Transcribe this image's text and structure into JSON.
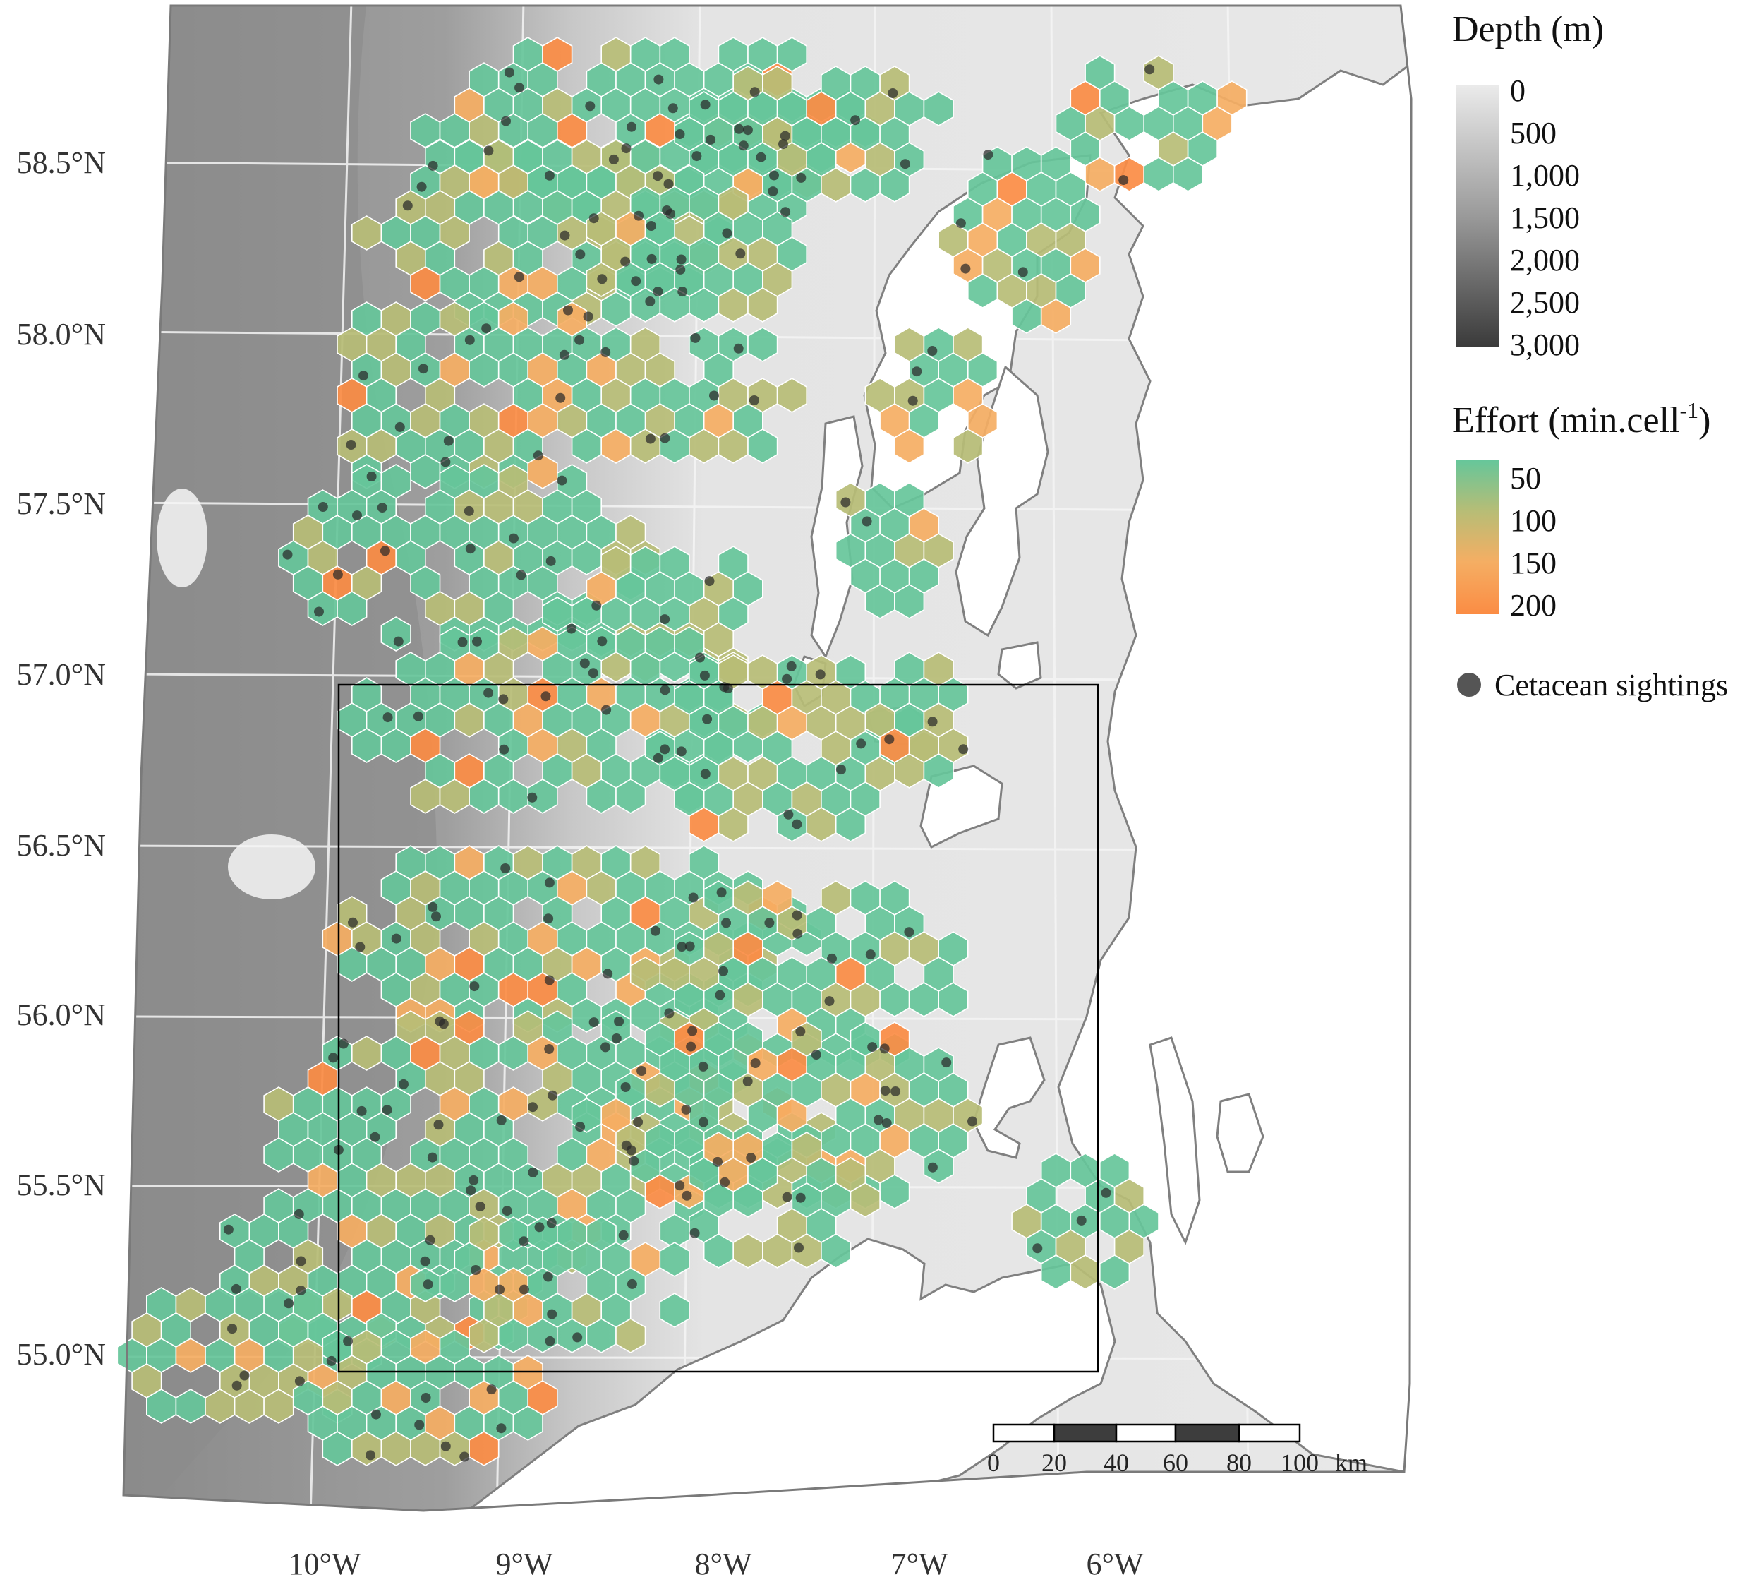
{
  "map": {
    "latitude_labels": [
      "58.5°N",
      "58.0°N",
      "57.5°N",
      "57.0°N",
      "56.5°N",
      "56.0°N",
      "55.5°N",
      "55.0°N"
    ],
    "longitude_labels": [
      "10°W",
      "9°W",
      "8°W",
      "7°W",
      "6°W"
    ],
    "land_color": "#ffffff",
    "coast_color": "#808080",
    "graticule_color": "#f5f5f5",
    "study_box_color": "#000000"
  },
  "depth_legend": {
    "title": "Depth (m)",
    "ticks": [
      "0",
      "500",
      "1,000",
      "1,500",
      "2,000",
      "2,500",
      "3,000"
    ],
    "color_shallow": "#ebebeb",
    "color_deep": "#3a3a3a"
  },
  "effort_legend": {
    "title_main": "Effort (min.cell",
    "title_sup": "-1",
    "title_close": ")",
    "ticks": [
      "50",
      "100",
      "150",
      "200"
    ],
    "colors": [
      "#66c69a",
      "#b7bd76",
      "#f5ae63",
      "#fb8c44"
    ]
  },
  "sightings_legend": {
    "label": "Cetacean sightings",
    "color": "#555555"
  },
  "scale_bar": {
    "ticks": [
      "0",
      "20",
      "40",
      "60",
      "80",
      "100"
    ],
    "unit": "km"
  }
}
